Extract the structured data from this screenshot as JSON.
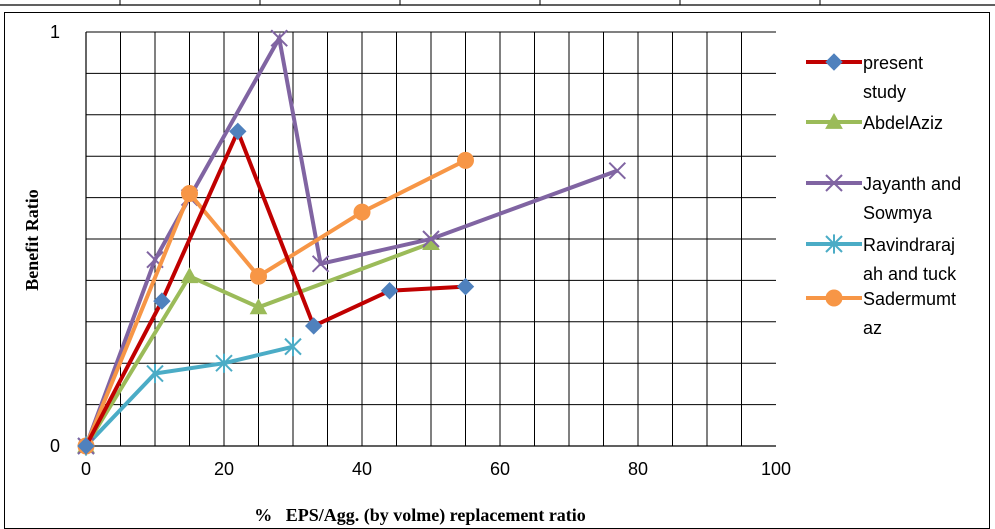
{
  "chart_data": {
    "type": "line",
    "xlabel": "%   EPS/Agg. (by volme) replacement ratio",
    "ylabel": "Benefit Ratio",
    "xlim": [
      0,
      100
    ],
    "ylim": [
      0,
      1
    ],
    "x_ticks": [
      "0",
      "20",
      "40",
      "60",
      "80",
      "100"
    ],
    "y_ticks": [
      "0",
      "1"
    ],
    "grid": true,
    "legend_position": "right",
    "series": [
      {
        "name_lines": [
          "present",
          "study"
        ],
        "color": "#C00000",
        "marker_color": "#4F81BD",
        "marker": "diamond",
        "x": [
          0,
          11,
          22,
          33,
          44,
          55
        ],
        "y": [
          0,
          0.35,
          0.76,
          0.29,
          0.375,
          0.385
        ]
      },
      {
        "name_lines": [
          "AbdelAziz"
        ],
        "color": "#9BBB59",
        "marker_color": "#9BBB59",
        "marker": "triangle",
        "x": [
          0,
          15,
          25,
          50
        ],
        "y": [
          0,
          0.41,
          0.335,
          0.49
        ]
      },
      {
        "name_lines": [
          "Jayanth and",
          "Sowmya"
        ],
        "color": "#8064A2",
        "marker_color": "#8064A2",
        "marker": "x",
        "x": [
          0,
          10,
          15,
          28,
          34,
          50,
          77
        ],
        "y": [
          0,
          0.45,
          0.6,
          0.985,
          0.44,
          0.5,
          0.665
        ]
      },
      {
        "name_lines": [
          "Ravindraraj",
          "ah and tuck"
        ],
        "color": "#4BACC6",
        "marker_color": "#4BACC6",
        "marker": "asterisk",
        "x": [
          0,
          10,
          20,
          30
        ],
        "y": [
          0,
          0.175,
          0.2,
          0.24
        ]
      },
      {
        "name_lines": [
          "Sadermumt",
          "az"
        ],
        "color": "#F79646",
        "marker_color": "#F79646",
        "marker": "circle",
        "x": [
          0,
          15,
          25,
          40,
          55
        ],
        "y": [
          0,
          0.61,
          0.41,
          0.565,
          0.69
        ]
      }
    ]
  }
}
